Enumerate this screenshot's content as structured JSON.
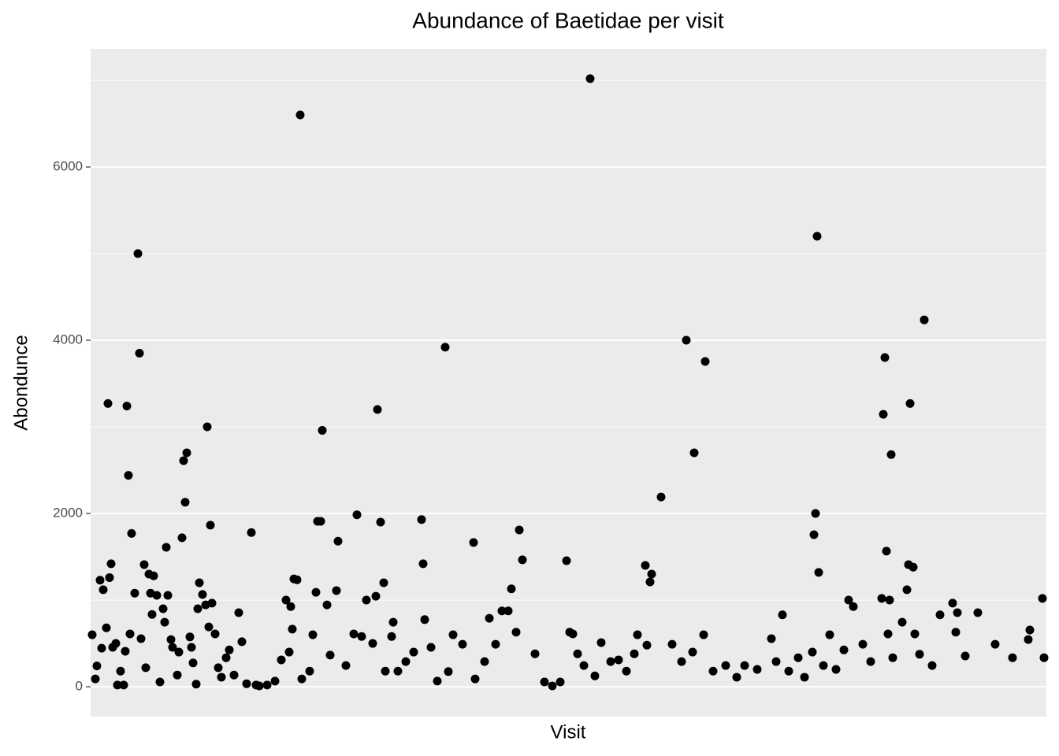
{
  "chart_data": {
    "type": "scatter",
    "title": "Abundance of Baetidae per visit",
    "x_label": "Visit",
    "y_label": "Abondunce",
    "x": [
      1,
      3,
      4,
      6,
      7,
      8,
      10,
      11,
      12,
      13,
      14,
      16,
      17,
      19,
      21,
      22,
      23,
      24,
      25,
      26,
      28,
      30,
      31,
      32,
      34,
      35,
      37,
      38,
      39,
      40,
      42,
      44,
      46,
      47,
      48,
      49,
      51,
      52,
      55,
      56,
      58,
      59,
      60,
      61,
      63,
      64,
      65,
      67,
      68,
      69,
      71,
      73,
      74,
      75,
      76,
      77,
      79,
      81,
      83,
      86,
      88,
      91,
      94,
      96,
      99,
      102,
      105,
      107,
      112,
      117,
      121,
      124,
      126,
      127,
      128,
      129,
      131,
      133,
      134,
      139,
      141,
      143,
      144,
      146,
      147,
      150,
      152,
      156,
      157,
      162,
      167,
      169,
      172,
      175,
      179,
      181,
      182,
      184,
      186,
      187,
      191,
      192,
      195,
      200,
      205,
      210,
      211,
      212,
      216,
      220,
      225,
      227,
      230,
      236,
      243,
      244,
      250,
      253,
      257,
      261,
      265,
      267,
      270,
      272,
      274,
      282,
      288,
      293,
      298,
      302,
      304,
      306,
      309,
      313,
      317,
      320,
      324,
      330,
      335,
      340,
      345,
      347,
      352,
      353,
      355,
      356,
      362,
      369,
      375,
      378,
      382,
      383,
      389,
      390,
      395,
      403,
      410,
      415,
      423,
      432,
      435,
      439,
      443,
      449,
      453,
      458,
      459,
      460,
      461,
      462,
      465,
      469,
      473,
      478,
      481,
      484,
      490,
      495,
      502,
      503,
      504,
      505,
      506,
      507,
      508,
      509,
      515,
      518,
      519,
      520,
      522,
      523,
      526,
      529,
      534,
      539,
      547,
      549,
      550,
      555,
      563,
      574,
      585,
      595,
      596,
      604,
      605
    ],
    "values": [
      600,
      90,
      240,
      1230,
      445,
      1120,
      680,
      3270,
      1260,
      1420,
      455,
      500,
      20,
      180,
      20,
      410,
      3240,
      2440,
      610,
      1770,
      1080,
      5000,
      3850,
      555,
      1410,
      220,
      1300,
      1080,
      835,
      1280,
      1055,
      55,
      900,
      745,
      1610,
      1055,
      545,
      455,
      135,
      400,
      1720,
      2610,
      2130,
      2700,
      575,
      455,
      275,
      30,
      900,
      1200,
      1065,
      945,
      3000,
      690,
      1865,
      965,
      610,
      220,
      110,
      335,
      425,
      135,
      855,
      520,
      35,
      1780,
      20,
      10,
      20,
      65,
      310,
      1000,
      400,
      925,
      665,
      1245,
      1235,
      6600,
      90,
      180,
      600,
      1090,
      1910,
      1910,
      2960,
      945,
      365,
      1110,
      1680,
      245,
      610,
      1985,
      580,
      1000,
      500,
      1045,
      3200,
      1900,
      1200,
      180,
      580,
      745,
      180,
      290,
      400,
      1930,
      1420,
      775,
      455,
      65,
      3920,
      175,
      600,
      490,
      1665,
      90,
      290,
      790,
      490,
      875,
      875,
      1130,
      630,
      1810,
      1465,
      380,
      55,
      10,
      55,
      1455,
      630,
      610,
      380,
      245,
      7020,
      125,
      510,
      290,
      310,
      180,
      380,
      600,
      1400,
      480,
      1210,
      1300,
      2190,
      490,
      290,
      4000,
      400,
      2700,
      600,
      3755,
      180,
      245,
      110,
      245,
      200,
      555,
      290,
      830,
      180,
      335,
      110,
      400,
      1755,
      2000,
      5200,
      1320,
      245,
      600,
      200,
      425,
      1000,
      925,
      490,
      290,
      1020,
      3145,
      3800,
      1565,
      610,
      1000,
      2680,
      335,
      745,
      1120,
      1410,
      3270,
      1380,
      610,
      375,
      4235,
      245,
      830,
      965,
      630,
      855,
      355,
      855,
      490,
      335,
      545,
      655,
      1020,
      335
    ],
    "color": "#000000",
    "xlim": [
      0,
      606.5
    ],
    "ylim": [
      -345,
      7364
    ],
    "yticks": [
      0,
      2000,
      4000,
      6000
    ],
    "grid": true
  }
}
